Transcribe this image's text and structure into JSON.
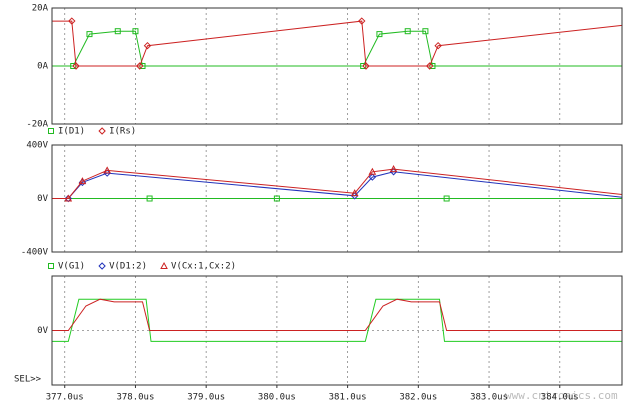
{
  "chart_data": [
    {
      "type": "line",
      "xlim": [
        376.82,
        384.88
      ],
      "ylim": [
        -20,
        20
      ],
      "yticks": [
        {
          "value": -20,
          "label": "-20A"
        },
        {
          "value": 0,
          "label": "0A"
        },
        {
          "value": 20,
          "label": "20A"
        }
      ],
      "grid": true,
      "series": [
        {
          "name": "I(D1)",
          "color": "#22bb22",
          "marker": "square",
          "x": [
            376.82,
            377.12,
            377.35,
            377.75,
            378.0,
            378.1,
            381.22,
            381.45,
            381.85,
            382.1,
            382.2,
            384.88
          ],
          "values": [
            0,
            0,
            11,
            12,
            12,
            0,
            0,
            11,
            12,
            12,
            0,
            0
          ]
        },
        {
          "name": "I(Rs)",
          "color": "#cc2222",
          "marker": "diamond",
          "x": [
            376.82,
            377.1,
            377.16,
            378.06,
            378.17,
            381.2,
            381.26,
            382.16,
            382.28,
            384.88
          ],
          "values": [
            15.5,
            15.5,
            0,
            0,
            7,
            15.5,
            0,
            0,
            7,
            14
          ]
        }
      ]
    },
    {
      "type": "line",
      "xlim": [
        376.82,
        384.88
      ],
      "ylim": [
        -400,
        400
      ],
      "yticks": [
        {
          "value": -400,
          "label": "-400V"
        },
        {
          "value": 0,
          "label": "0V"
        },
        {
          "value": 400,
          "label": "400V"
        }
      ],
      "grid": true,
      "series": [
        {
          "name": "V(G1)",
          "color": "#22bb22",
          "marker": "square",
          "x": [
            376.82,
            378.2,
            380.0,
            382.4,
            384.88
          ],
          "values": [
            0,
            0,
            0,
            0,
            0
          ]
        },
        {
          "name": "V(D1:2)",
          "color": "#2233bb",
          "marker": "diamond",
          "x": [
            376.82,
            377.05,
            377.25,
            377.6,
            381.1,
            381.35,
            381.65,
            384.88
          ],
          "values": [
            0,
            0,
            120,
            190,
            20,
            160,
            200,
            10
          ]
        },
        {
          "name": "V(Cx:1,Cx:2)",
          "color": "#cc2222",
          "marker": "triangle",
          "x": [
            376.82,
            377.05,
            377.25,
            377.6,
            381.1,
            381.35,
            381.65,
            384.88
          ],
          "values": [
            0,
            0,
            130,
            210,
            40,
            200,
            220,
            30
          ]
        }
      ]
    },
    {
      "type": "line",
      "xlim": [
        376.82,
        384.88
      ],
      "ylim": [
        -400,
        400
      ],
      "yticks": [
        {
          "value": 0,
          "label": "0V"
        }
      ],
      "xticks": [
        {
          "value": 377.0,
          "label": "377.0us"
        },
        {
          "value": 378.0,
          "label": "378.0us"
        },
        {
          "value": 379.0,
          "label": "379.0us"
        },
        {
          "value": 380.0,
          "label": "380.0us"
        },
        {
          "value": 381.0,
          "label": "381.0us"
        },
        {
          "value": 382.0,
          "label": "382.0us"
        },
        {
          "value": 383.0,
          "label": "383.0us"
        },
        {
          "value": 384.0,
          "label": "384.0us"
        }
      ],
      "grid": true,
      "label": "SEL>>",
      "series": [
        {
          "color": "#22cc22",
          "x": [
            376.82,
            377.05,
            377.2,
            378.15,
            378.22,
            381.25,
            381.4,
            382.3,
            382.37,
            384.88
          ],
          "values": [
            -80,
            -80,
            230,
            230,
            -80,
            -80,
            230,
            230,
            -80,
            -80
          ]
        },
        {
          "color": "#cc2222",
          "x": [
            376.82,
            377.05,
            377.3,
            377.5,
            377.7,
            378.1,
            378.2,
            381.25,
            381.5,
            381.7,
            381.9,
            382.3,
            382.4,
            384.88
          ],
          "values": [
            0,
            0,
            180,
            230,
            210,
            210,
            0,
            0,
            180,
            230,
            210,
            210,
            0,
            0
          ]
        }
      ]
    }
  ],
  "watermark": "www.cntronics.com"
}
